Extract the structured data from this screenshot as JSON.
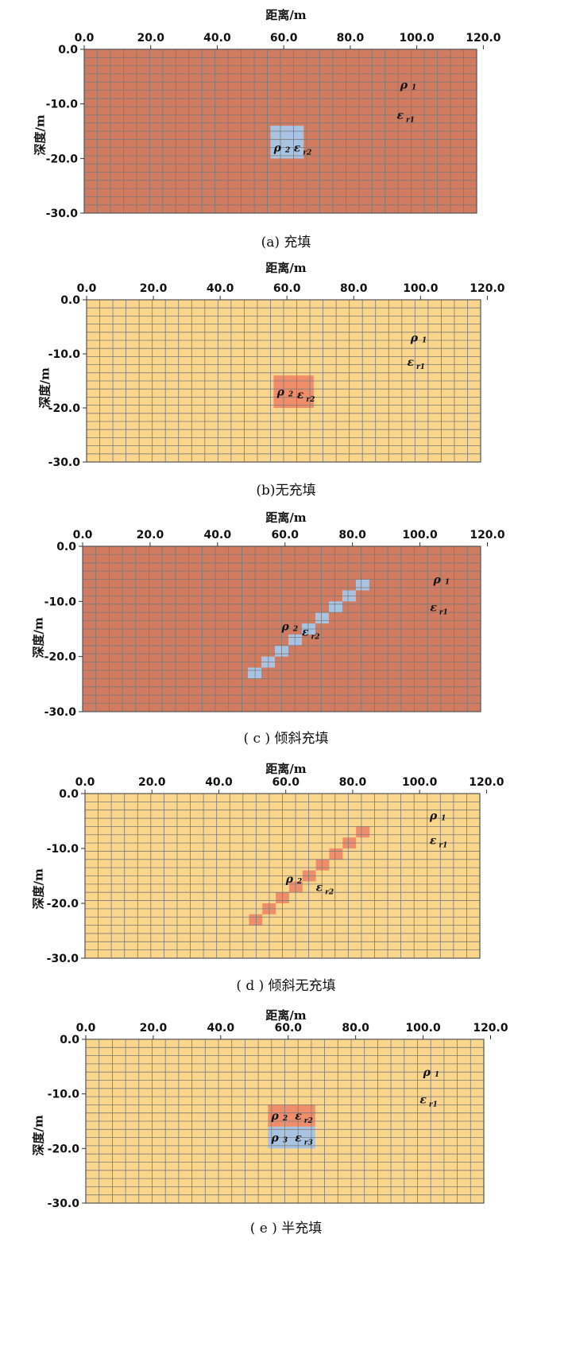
{
  "colors": {
    "filled_bg": "#d17b60",
    "unfilled_bg": "#fad58c",
    "blue_cell": "#a9c4e3",
    "red_cell": "#f08e6c",
    "grid_line": "#7a7a7a"
  },
  "axes": {
    "x_title": "距离/m",
    "y_title": "深度/m",
    "x_ticks": [
      "0.0",
      "20.0",
      "40.0",
      "60.0",
      "80.0",
      "100.0",
      "120.0"
    ],
    "y_ticks": [
      "0.0",
      "-10.0",
      "-20.0",
      "-30.0"
    ]
  },
  "symbols": {
    "rho": "ρ",
    "eps": "ε",
    "rho1_sub": "1",
    "eps1_sub": "r1",
    "rho2_sub": "2",
    "eps2_sub": "r2",
    "rho3_sub": "3",
    "eps3_sub": "r3"
  },
  "panels": [
    {
      "caption": "(a) 充填",
      "background": "filled",
      "anomaly": [
        {
          "x_from": 56,
          "x_to": 66,
          "depth_from": 14,
          "depth_to": 20,
          "color": "blue"
        }
      ],
      "labels": [
        {
          "sym": "rho",
          "sub": "rho1_sub",
          "x": 95,
          "depth": 6.5
        },
        {
          "sym": "eps",
          "sub": "eps1_sub",
          "x": 94,
          "depth": 12
        },
        {
          "sym": "rho",
          "sub": "rho2_sub",
          "x": 57,
          "depth": 18
        },
        {
          "sym": "eps",
          "sub": "eps2_sub",
          "x": 63,
          "depth": 18
        }
      ]
    },
    {
      "caption": "(b)无充填",
      "background": "unfilled",
      "anomaly": [
        {
          "x_from": 56,
          "x_to": 68,
          "depth_from": 14,
          "depth_to": 20,
          "color": "red"
        }
      ],
      "labels": [
        {
          "sym": "rho",
          "sub": "rho1_sub",
          "x": 97,
          "depth": 7
        },
        {
          "sym": "eps",
          "sub": "eps1_sub",
          "x": 96,
          "depth": 11.5
        },
        {
          "sym": "rho",
          "sub": "rho2_sub",
          "x": 57,
          "depth": 17
        },
        {
          "sym": "eps",
          "sub": "eps2_sub",
          "x": 63,
          "depth": 17.5
        }
      ]
    },
    {
      "caption": "( c ) 倾斜充填",
      "background": "filled",
      "staircase": {
        "x_start": 49,
        "depth_start": 22,
        "steps": 9,
        "dx": 4,
        "ddepth": -2,
        "color": "blue"
      },
      "labels": [
        {
          "sym": "rho",
          "sub": "rho1_sub",
          "x": 104,
          "depth": 6
        },
        {
          "sym": "eps",
          "sub": "eps1_sub",
          "x": 103,
          "depth": 11
        },
        {
          "sym": "rho",
          "sub": "rho2_sub",
          "x": 59,
          "depth": 14.5
        },
        {
          "sym": "eps",
          "sub": "eps2_sub",
          "x": 65,
          "depth": 15.5
        }
      ]
    },
    {
      "caption": "( d ) 倾斜无充填",
      "background": "unfilled",
      "staircase": {
        "x_start": 49,
        "depth_start": 22,
        "steps": 9,
        "dx": 4,
        "ddepth": -2,
        "color": "red"
      },
      "labels": [
        {
          "sym": "rho",
          "sub": "rho1_sub",
          "x": 103,
          "depth": 4
        },
        {
          "sym": "eps",
          "sub": "eps1_sub",
          "x": 103,
          "depth": 8.5
        },
        {
          "sym": "rho",
          "sub": "rho2_sub",
          "x": 60,
          "depth": 15.5
        },
        {
          "sym": "eps",
          "sub": "eps2_sub",
          "x": 69,
          "depth": 17
        }
      ]
    },
    {
      "caption": "( e ) 半充填",
      "background": "unfilled",
      "anomaly": [
        {
          "x_from": 54,
          "x_to": 68,
          "depth_from": 12,
          "depth_to": 16,
          "color": "red"
        },
        {
          "x_from": 54,
          "x_to": 68,
          "depth_from": 16,
          "depth_to": 20,
          "color": "blue"
        }
      ],
      "labels": [
        {
          "sym": "rho",
          "sub": "rho1_sub",
          "x": 100,
          "depth": 6
        },
        {
          "sym": "eps",
          "sub": "eps1_sub",
          "x": 99,
          "depth": 11
        },
        {
          "sym": "rho",
          "sub": "rho2_sub",
          "x": 55,
          "depth": 14
        },
        {
          "sym": "eps",
          "sub": "eps2_sub",
          "x": 62,
          "depth": 14
        },
        {
          "sym": "rho",
          "sub": "rho3_sub",
          "x": 55,
          "depth": 18
        },
        {
          "sym": "eps",
          "sub": "eps3_sub",
          "x": 62,
          "depth": 18
        }
      ]
    }
  ]
}
